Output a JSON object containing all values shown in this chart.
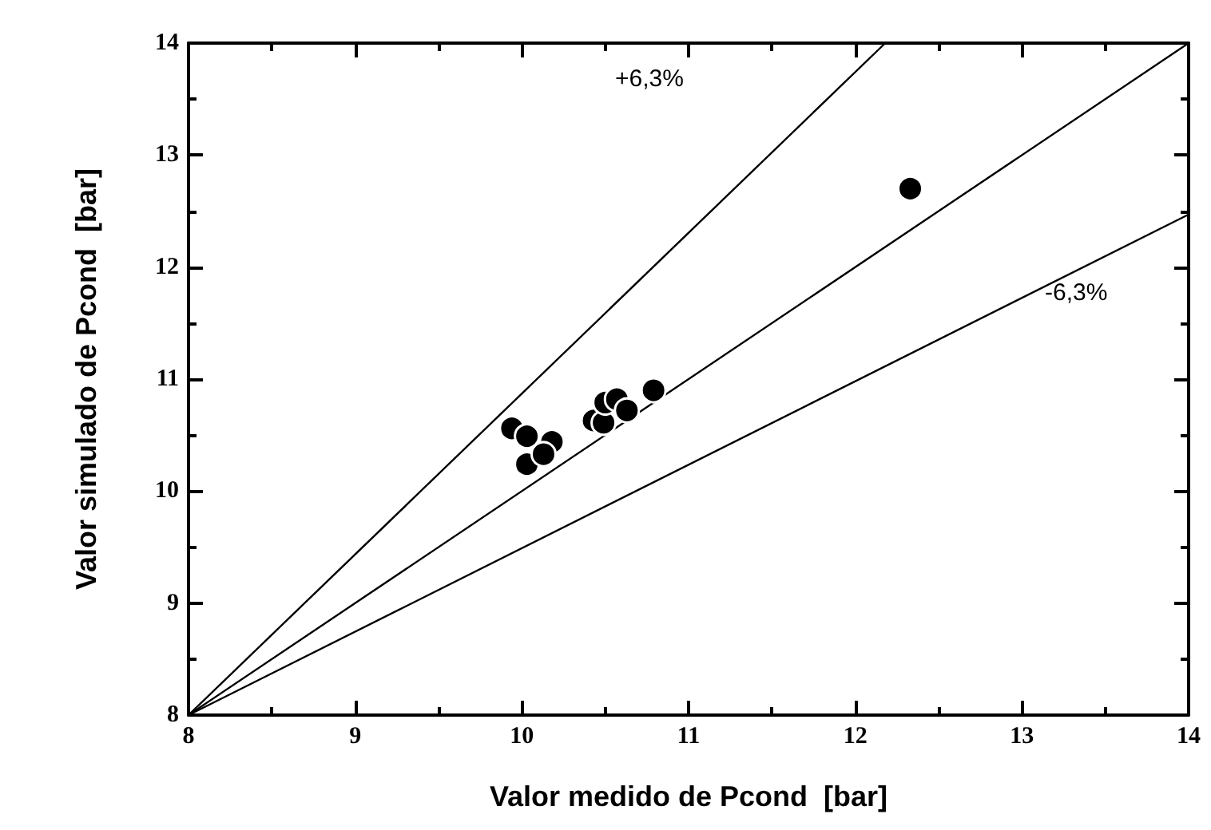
{
  "chart_data": {
    "type": "scatter",
    "xlabel": "Valor medido de Pcond  [bar]",
    "ylabel": "Valor simulado de Pcond  [bar]",
    "xlim": [
      8,
      14
    ],
    "ylim": [
      8,
      14
    ],
    "xticks": [
      8,
      9,
      10,
      11,
      12,
      13,
      14
    ],
    "yticks": [
      8,
      9,
      10,
      11,
      12,
      13,
      14
    ],
    "grid": false,
    "marker": "circle",
    "series": [
      {
        "color": "#000000",
        "x": [
          9.94,
          10.03,
          10.18,
          10.03,
          10.13,
          10.43,
          10.49,
          10.5,
          10.57,
          10.63,
          10.79,
          12.33
        ],
        "values": [
          10.56,
          10.49,
          10.44,
          10.24,
          10.33,
          10.63,
          10.61,
          10.79,
          10.82,
          10.72,
          10.9,
          12.7
        ]
      },
      {
        "type": "line",
        "color": "#000000",
        "marker": "none",
        "line_style": "solid",
        "x": [
          8,
          14
        ],
        "values": [
          8,
          14
        ]
      },
      {
        "type": "line",
        "color": "#000000",
        "marker": "none",
        "line_style": "solid",
        "x": [
          8,
          12.18
        ],
        "values": [
          8,
          14
        ]
      },
      {
        "type": "line",
        "color": "#000000",
        "marker": "none",
        "line_style": "solid",
        "x": [
          8,
          14
        ],
        "values": [
          8,
          12.47
        ]
      }
    ],
    "annotations": [
      "+6,3%",
      "-6,3%"
    ]
  }
}
